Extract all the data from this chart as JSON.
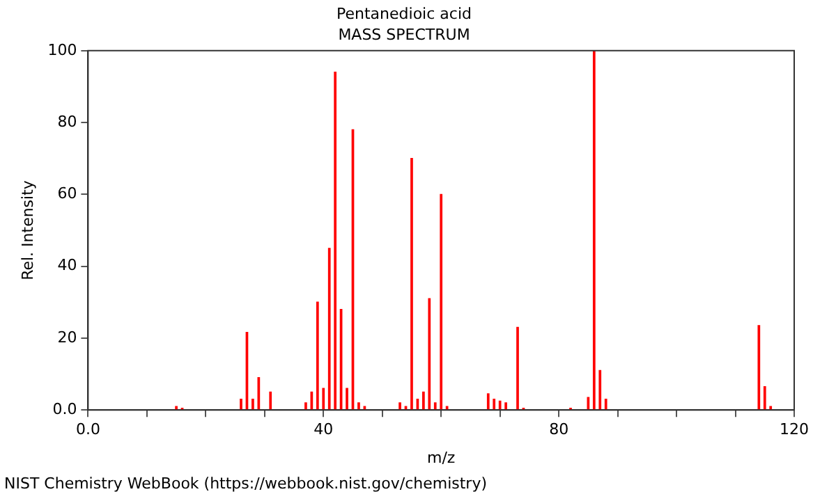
{
  "chart_data": {
    "type": "bar",
    "title": "Pentanedioic acid",
    "subtitle": "MASS SPECTRUM",
    "xlabel": "m/z",
    "ylabel": "Rel. Intensity",
    "x": [
      15,
      16,
      26,
      27,
      28,
      29,
      31,
      37,
      38,
      39,
      40,
      41,
      42,
      43,
      44,
      45,
      46,
      47,
      53,
      54,
      55,
      56,
      57,
      58,
      59,
      60,
      61,
      68,
      69,
      70,
      71,
      73,
      74,
      82,
      85,
      86,
      87,
      88,
      114,
      115,
      116
    ],
    "values": [
      1,
      0.5,
      3,
      21.6,
      3,
      9,
      5,
      2,
      5,
      30,
      6,
      45,
      94,
      28,
      6,
      78,
      2,
      1,
      2,
      1,
      70,
      3,
      5,
      31,
      2,
      60,
      1,
      4.5,
      3,
      2.5,
      2,
      23,
      0.5,
      0.5,
      3.5,
      100,
      11,
      3,
      23.5,
      6.5,
      1
    ],
    "color": "#ff0000",
    "xlim": [
      0,
      120
    ],
    "xticks": [
      {
        "value": 0,
        "label": "0.0"
      },
      {
        "value": 10,
        "label": null
      },
      {
        "value": 20,
        "label": null
      },
      {
        "value": 30,
        "label": null
      },
      40,
      {
        "value": 50,
        "label": null
      },
      {
        "value": 60,
        "label": null
      },
      {
        "value": 70,
        "label": null
      },
      80,
      {
        "value": 90,
        "label": null
      },
      {
        "value": 100,
        "label": null
      },
      {
        "value": 110,
        "label": null
      },
      120
    ],
    "ylim": [
      0,
      100
    ],
    "yticks": [
      {
        "value": 0,
        "label": "0.0"
      },
      20,
      40,
      60,
      80,
      100
    ],
    "grid": false,
    "legend": false,
    "annotations": [
      "NIST Chemistry WebBook (https://webbook.nist.gov/chemistry)"
    ]
  }
}
